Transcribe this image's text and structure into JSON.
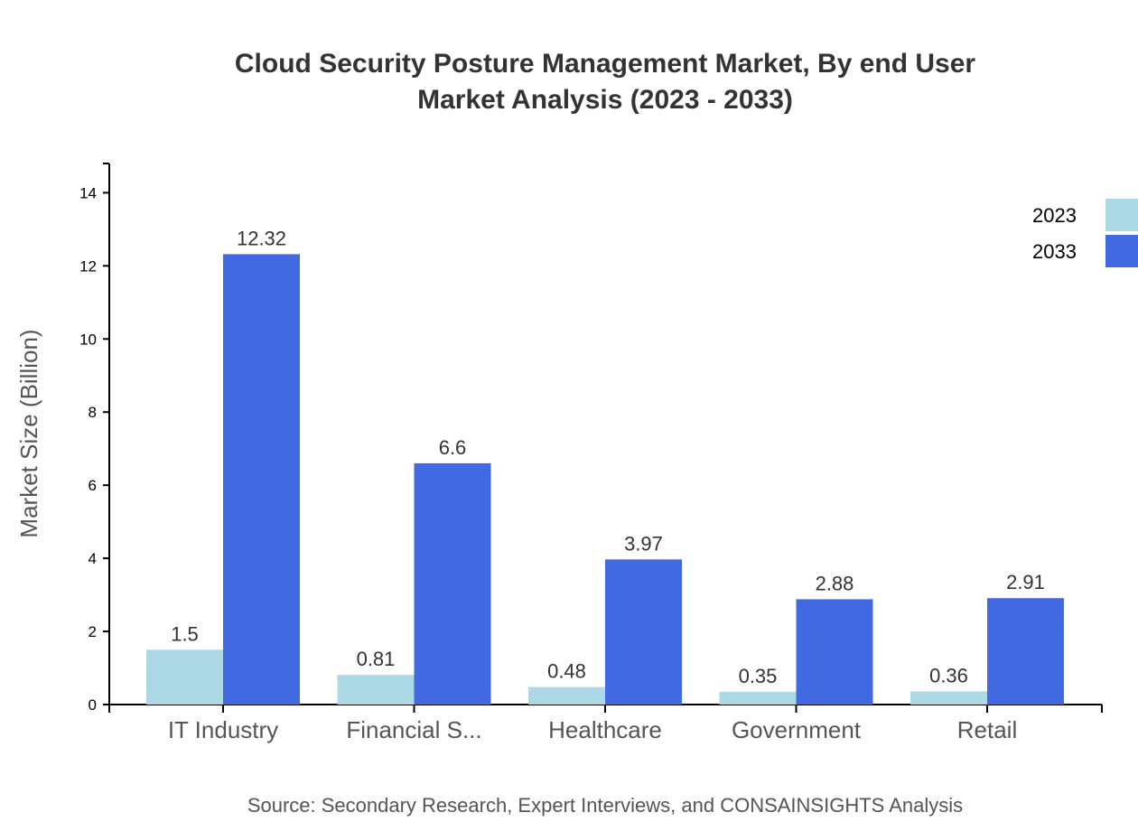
{
  "chart_data": {
    "type": "bar",
    "title": [
      "Cloud Security Posture Management Market, By end User",
      "Market Analysis (2023 - 2033)"
    ],
    "xlabel": "",
    "ylabel": "Market Size (Billion)",
    "categories": [
      "IT Industry",
      "Financial S...",
      "Healthcare",
      "Government",
      "Retail"
    ],
    "series": [
      {
        "name": "2023",
        "color": "#add8e6",
        "values": [
          1.5,
          0.81,
          0.48,
          0.35,
          0.36
        ]
      },
      {
        "name": "2033",
        "color": "#4169e1",
        "values": [
          12.32,
          6.6,
          3.97,
          2.88,
          2.91
        ]
      }
    ],
    "ylim": [
      0,
      14.8
    ],
    "yticks": [
      0,
      2,
      4,
      6,
      8,
      10,
      12,
      14
    ],
    "grid": false,
    "legend": "top-right",
    "source": "Source: Secondary Research, Expert Interviews, and CONSAINSIGHTS Analysis"
  }
}
